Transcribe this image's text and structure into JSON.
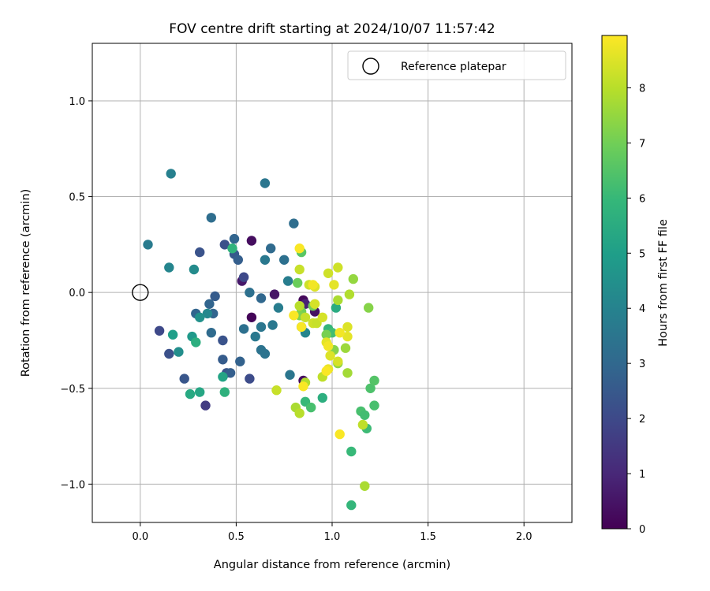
{
  "chart_data": {
    "type": "scatter",
    "title": "FOV centre drift starting at 2024/10/07 11:57:42",
    "xlabel": "Angular distance from reference (arcmin)",
    "ylabel": "Rotation from reference (arcmin)",
    "xlim": [
      -0.25,
      2.25
    ],
    "ylim": [
      -1.2,
      1.3
    ],
    "xticks": [
      0.0,
      0.5,
      1.0,
      1.5,
      2.0
    ],
    "xtick_labels": [
      "0.0",
      "0.5",
      "1.0",
      "1.5",
      "2.0"
    ],
    "yticks": [
      -1.0,
      -0.5,
      0.0,
      0.5,
      1.0
    ],
    "ytick_labels": [
      "−1.0",
      "−0.5",
      "0.0",
      "0.5",
      "1.0"
    ],
    "grid": true,
    "legend": {
      "position": "upper right",
      "entries": [
        "Reference platepar"
      ]
    },
    "reference_point": {
      "x": 0.0,
      "y": 0.0,
      "marker": "open circle",
      "color": "#000000"
    },
    "colorbar": {
      "label": "Hours from first FF file",
      "range": [
        0,
        8.95
      ],
      "ticks": [
        0,
        1,
        2,
        3,
        4,
        5,
        6,
        7,
        8
      ],
      "tick_labels": [
        "0",
        "1",
        "2",
        "3",
        "4",
        "5",
        "6",
        "7",
        "8"
      ],
      "colormap": "viridis"
    },
    "colormap_stops": [
      "#440154",
      "#482878",
      "#3e4989",
      "#31688e",
      "#26828e",
      "#1f9e89",
      "#35b779",
      "#6ece58",
      "#b5de2b",
      "#fde725"
    ],
    "points": [
      {
        "x": 0.58,
        "y": 0.27,
        "c": 0.3
      },
      {
        "x": 0.53,
        "y": 0.06,
        "c": 0.6
      },
      {
        "x": 0.58,
        "y": -0.13,
        "c": 0.1
      },
      {
        "x": 0.7,
        "y": -0.01,
        "c": 0.5
      },
      {
        "x": 0.85,
        "y": -0.04,
        "c": 0.2
      },
      {
        "x": 0.86,
        "y": -0.06,
        "c": 0.9
      },
      {
        "x": 0.91,
        "y": -0.1,
        "c": 0.4
      },
      {
        "x": 0.85,
        "y": -0.46,
        "c": 0.3
      },
      {
        "x": 0.1,
        "y": -0.2,
        "c": 2.0
      },
      {
        "x": 0.15,
        "y": -0.32,
        "c": 2.2
      },
      {
        "x": 0.23,
        "y": -0.45,
        "c": 2.4
      },
      {
        "x": 0.34,
        "y": -0.59,
        "c": 1.6
      },
      {
        "x": 0.31,
        "y": 0.21,
        "c": 2.3
      },
      {
        "x": 0.44,
        "y": 0.25,
        "c": 2.2
      },
      {
        "x": 0.49,
        "y": 0.2,
        "c": 2.5
      },
      {
        "x": 0.51,
        "y": 0.17,
        "c": 2.7
      },
      {
        "x": 0.54,
        "y": 0.08,
        "c": 2.0
      },
      {
        "x": 0.43,
        "y": -0.25,
        "c": 2.3
      },
      {
        "x": 0.43,
        "y": -0.35,
        "c": 2.6
      },
      {
        "x": 0.45,
        "y": -0.42,
        "c": 2.4
      },
      {
        "x": 0.47,
        "y": -0.42,
        "c": 2.7
      },
      {
        "x": 0.52,
        "y": -0.36,
        "c": 2.8
      },
      {
        "x": 0.57,
        "y": -0.45,
        "c": 2.1
      },
      {
        "x": 0.36,
        "y": -0.06,
        "c": 2.9
      },
      {
        "x": 0.39,
        "y": -0.02,
        "c": 2.6
      },
      {
        "x": 0.29,
        "y": -0.11,
        "c": 2.9
      },
      {
        "x": 0.38,
        "y": -0.11,
        "c": 2.9
      },
      {
        "x": 0.37,
        "y": -0.21,
        "c": 3.1
      },
      {
        "x": 0.49,
        "y": 0.28,
        "c": 2.9
      },
      {
        "x": 0.37,
        "y": 0.39,
        "c": 3.2
      },
      {
        "x": 0.04,
        "y": 0.25,
        "c": 3.7
      },
      {
        "x": 0.16,
        "y": 0.62,
        "c": 3.9
      },
      {
        "x": 0.65,
        "y": 0.57,
        "c": 3.5
      },
      {
        "x": 0.8,
        "y": 0.36,
        "c": 3.2
      },
      {
        "x": 0.75,
        "y": 0.17,
        "c": 3.3
      },
      {
        "x": 0.65,
        "y": 0.17,
        "c": 3.6
      },
      {
        "x": 0.68,
        "y": 0.23,
        "c": 3.1
      },
      {
        "x": 0.57,
        "y": 0.0,
        "c": 3.3
      },
      {
        "x": 0.63,
        "y": -0.03,
        "c": 3.0
      },
      {
        "x": 0.63,
        "y": -0.18,
        "c": 3.5
      },
      {
        "x": 0.54,
        "y": -0.19,
        "c": 3.3
      },
      {
        "x": 0.6,
        "y": -0.23,
        "c": 3.6
      },
      {
        "x": 0.63,
        "y": -0.3,
        "c": 3.4
      },
      {
        "x": 0.65,
        "y": -0.32,
        "c": 3.4
      },
      {
        "x": 0.69,
        "y": -0.17,
        "c": 3.6
      },
      {
        "x": 0.72,
        "y": -0.08,
        "c": 3.8
      },
      {
        "x": 0.77,
        "y": 0.06,
        "c": 3.8
      },
      {
        "x": 0.78,
        "y": -0.43,
        "c": 3.5
      },
      {
        "x": 0.84,
        "y": -0.18,
        "c": 3.9
      },
      {
        "x": 0.86,
        "y": -0.21,
        "c": 4.1
      },
      {
        "x": 0.15,
        "y": 0.13,
        "c": 4.1
      },
      {
        "x": 0.28,
        "y": 0.12,
        "c": 4.3
      },
      {
        "x": 0.35,
        "y": -0.11,
        "c": 4.2
      },
      {
        "x": 0.31,
        "y": -0.13,
        "c": 4.5
      },
      {
        "x": 0.2,
        "y": -0.31,
        "c": 4.4
      },
      {
        "x": 0.17,
        "y": -0.22,
        "c": 5.0
      },
      {
        "x": 0.27,
        "y": -0.23,
        "c": 4.8
      },
      {
        "x": 0.29,
        "y": -0.26,
        "c": 5.6
      },
      {
        "x": 0.26,
        "y": -0.53,
        "c": 5.4
      },
      {
        "x": 0.31,
        "y": -0.52,
        "c": 5.3
      },
      {
        "x": 0.43,
        "y": -0.44,
        "c": 5.2
      },
      {
        "x": 0.44,
        "y": -0.52,
        "c": 5.7
      },
      {
        "x": 0.48,
        "y": 0.23,
        "c": 5.8
      },
      {
        "x": 1.02,
        "y": -0.08,
        "c": 5.5
      },
      {
        "x": 0.98,
        "y": -0.19,
        "c": 5.9
      },
      {
        "x": 1.0,
        "y": -0.21,
        "c": 6.2
      },
      {
        "x": 0.95,
        "y": -0.55,
        "c": 5.6
      },
      {
        "x": 0.86,
        "y": -0.57,
        "c": 6.0
      },
      {
        "x": 0.89,
        "y": -0.6,
        "c": 6.3
      },
      {
        "x": 1.1,
        "y": -1.11,
        "c": 5.9
      },
      {
        "x": 1.1,
        "y": -0.83,
        "c": 6.0
      },
      {
        "x": 1.18,
        "y": -0.71,
        "c": 6.1
      },
      {
        "x": 1.15,
        "y": -0.62,
        "c": 6.3
      },
      {
        "x": 1.17,
        "y": -0.64,
        "c": 6.2
      },
      {
        "x": 1.22,
        "y": -0.59,
        "c": 6.3
      },
      {
        "x": 1.2,
        "y": -0.5,
        "c": 6.4
      },
      {
        "x": 1.22,
        "y": -0.46,
        "c": 6.5
      },
      {
        "x": 0.84,
        "y": 0.21,
        "c": 6.6
      },
      {
        "x": 0.82,
        "y": 0.05,
        "c": 6.9
      },
      {
        "x": 0.84,
        "y": -0.1,
        "c": 7.0
      },
      {
        "x": 0.9,
        "y": -0.07,
        "c": 7.0
      },
      {
        "x": 0.83,
        "y": -0.12,
        "c": 7.2
      },
      {
        "x": 0.97,
        "y": -0.22,
        "c": 7.1
      },
      {
        "x": 1.01,
        "y": -0.3,
        "c": 7.3
      },
      {
        "x": 1.03,
        "y": -0.37,
        "c": 7.4
      },
      {
        "x": 1.07,
        "y": -0.29,
        "c": 7.6
      },
      {
        "x": 1.08,
        "y": -0.42,
        "c": 7.7
      },
      {
        "x": 1.11,
        "y": 0.07,
        "c": 7.5
      },
      {
        "x": 1.19,
        "y": -0.08,
        "c": 7.3
      },
      {
        "x": 1.09,
        "y": -0.01,
        "c": 7.9
      },
      {
        "x": 1.03,
        "y": -0.04,
        "c": 7.8
      },
      {
        "x": 0.81,
        "y": -0.6,
        "c": 7.8
      },
      {
        "x": 0.83,
        "y": -0.63,
        "c": 8.0
      },
      {
        "x": 0.71,
        "y": -0.51,
        "c": 8.2
      },
      {
        "x": 0.86,
        "y": -0.47,
        "c": 7.9
      },
      {
        "x": 0.95,
        "y": -0.44,
        "c": 8.1
      },
      {
        "x": 1.16,
        "y": -0.69,
        "c": 8.1
      },
      {
        "x": 1.17,
        "y": -1.01,
        "c": 7.8
      },
      {
        "x": 0.83,
        "y": 0.12,
        "c": 8.2
      },
      {
        "x": 0.88,
        "y": 0.04,
        "c": 8.3
      },
      {
        "x": 0.83,
        "y": -0.07,
        "c": 8.0
      },
      {
        "x": 0.91,
        "y": -0.06,
        "c": 8.4
      },
      {
        "x": 0.86,
        "y": -0.13,
        "c": 8.2
      },
      {
        "x": 0.9,
        "y": -0.16,
        "c": 8.3
      },
      {
        "x": 0.92,
        "y": -0.16,
        "c": 8.2
      },
      {
        "x": 0.95,
        "y": -0.13,
        "c": 8.4
      },
      {
        "x": 0.98,
        "y": 0.1,
        "c": 8.3
      },
      {
        "x": 1.03,
        "y": 0.13,
        "c": 8.3
      },
      {
        "x": 1.01,
        "y": 0.04,
        "c": 8.6
      },
      {
        "x": 1.08,
        "y": -0.18,
        "c": 8.5
      },
      {
        "x": 1.08,
        "y": -0.23,
        "c": 8.6
      },
      {
        "x": 0.97,
        "y": -0.26,
        "c": 8.6
      },
      {
        "x": 0.99,
        "y": -0.33,
        "c": 8.5
      },
      {
        "x": 1.03,
        "y": -0.36,
        "c": 8.4
      },
      {
        "x": 0.98,
        "y": -0.4,
        "c": 8.7
      },
      {
        "x": 0.91,
        "y": 0.03,
        "c": 8.5
      },
      {
        "x": 1.04,
        "y": -0.21,
        "c": 8.8
      },
      {
        "x": 0.83,
        "y": 0.23,
        "c": 8.9
      },
      {
        "x": 0.9,
        "y": 0.04,
        "c": 8.8
      },
      {
        "x": 0.8,
        "y": -0.12,
        "c": 8.9
      },
      {
        "x": 0.84,
        "y": -0.18,
        "c": 8.9
      },
      {
        "x": 0.98,
        "y": -0.28,
        "c": 8.8
      },
      {
        "x": 0.97,
        "y": -0.41,
        "c": 8.9
      },
      {
        "x": 0.85,
        "y": -0.49,
        "c": 8.9
      },
      {
        "x": 1.04,
        "y": -0.74,
        "c": 8.9
      }
    ]
  }
}
